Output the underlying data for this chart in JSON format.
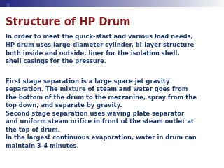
{
  "title": "Structure of HP Drum",
  "title_color": "#8B1A1A",
  "title_fontsize": 10.5,
  "body_color": "#1C3A6E",
  "body_fontsize": 6.0,
  "background_color": "#FFFFFF",
  "header_bar_left_color": "#1E2A7A",
  "header_bar_right_color": "#DDEEFF",
  "small_square_color": "#2A2A7A",
  "paragraph1": "In order to meet the quick-start and various load needs,\nHP drum uses large-diameter cylinder, bi-layer structure\nboth inside and outside; liner for the isolation shell,\nshell casings for the pressure.",
  "paragraph2": "First stage separation is a large space jet gravity\nseparation. The mixture of steam and water goes from\nthe bottom of the drum to the mezzanine, spray from the\ntop down, and separate by gravity.\nSecond stage separation uses waving plate separator\nand uniform steam orifice in front of the steam outlet at\nthe top of drum.\nIn the largest continuous evaporation, water in drum can\nmaintain 3-4 minutes."
}
